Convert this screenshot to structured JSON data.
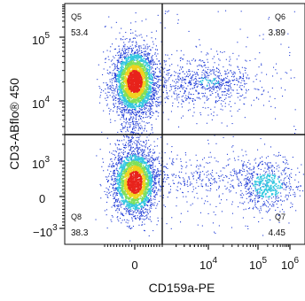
{
  "chart_data": {
    "type": "scatter",
    "subtype": "flow-cytometry-density-dot-plot",
    "xlabel": "CD159a-PE",
    "ylabel": "CD3-ABflo® 450",
    "x_ticks": [
      {
        "base": "0",
        "exp": ""
      },
      {
        "base": "10",
        "exp": "4"
      },
      {
        "base": "10",
        "exp": "5"
      },
      {
        "base": "10",
        "exp": "6"
      }
    ],
    "y_ticks": [
      {
        "base": "−10",
        "exp": "3"
      },
      {
        "base": "0",
        "exp": ""
      },
      {
        "base": "10",
        "exp": "3"
      },
      {
        "base": "10",
        "exp": "4"
      },
      {
        "base": "10",
        "exp": "5"
      }
    ],
    "quadrants": [
      {
        "name": "Q5",
        "percent": "53.4",
        "position": "top-left"
      },
      {
        "name": "Q6",
        "percent": "3.89",
        "position": "top-right"
      },
      {
        "name": "Q7",
        "percent": "4.45",
        "position": "bottom-right"
      },
      {
        "name": "Q8",
        "percent": "38.3",
        "position": "bottom-left"
      }
    ],
    "populations": [
      {
        "quadrant": "Q5",
        "center": {
          "x": 0,
          "y": 20000
        },
        "density": "high"
      },
      {
        "quadrant": "Q8",
        "center": {
          "x": 0,
          "y": 400
        },
        "density": "high"
      },
      {
        "quadrant": "Q6",
        "center": {
          "x": 10000,
          "y": 20000
        },
        "density": "low"
      },
      {
        "quadrant": "Q7",
        "center": {
          "x": 200000,
          "y": 300
        },
        "density": "medium"
      }
    ],
    "gate": {
      "x_threshold": 1000,
      "y_threshold": 3000
    },
    "colors": {
      "low": "#1f3bd6",
      "mid": "#35c8e0",
      "high_mid": "#7ee05a",
      "peak": "#f0d21e",
      "max": "#e8231c",
      "gate": "#111111"
    }
  }
}
